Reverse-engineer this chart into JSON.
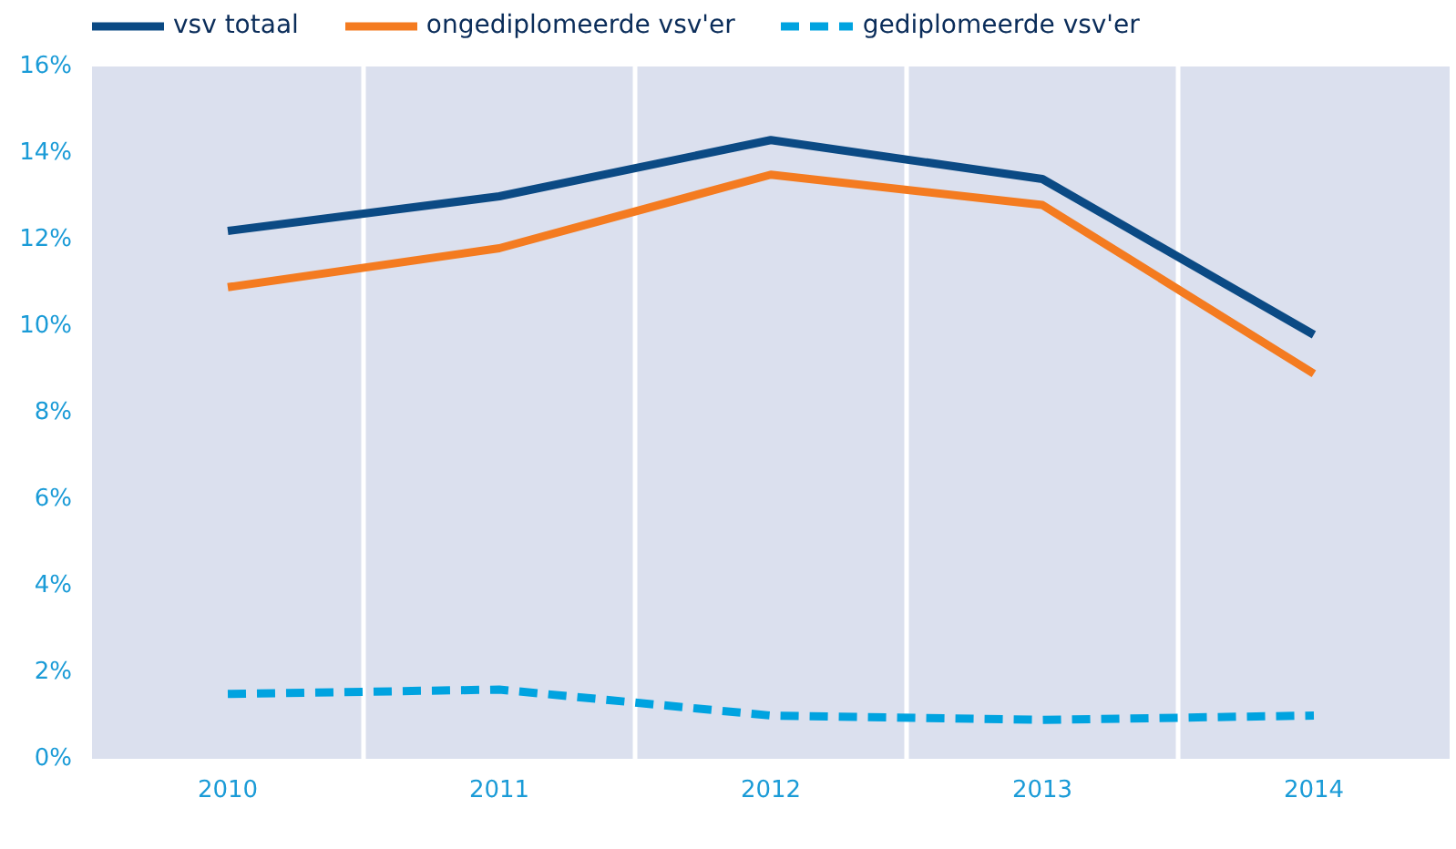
{
  "chart_data": {
    "type": "line",
    "categories": [
      "2010",
      "2011",
      "2012",
      "2013",
      "2014"
    ],
    "series": [
      {
        "name": "vsv totaal",
        "color": "#0b4a84",
        "values": [
          12.2,
          13.0,
          14.3,
          13.4,
          9.8
        ]
      },
      {
        "name": "ongediplomeerde vsv'er",
        "color": "#f47b20",
        "values": [
          10.9,
          11.8,
          13.5,
          12.8,
          8.9
        ]
      },
      {
        "name": "gediplomeerde vsv'er",
        "color": "#00a3e0",
        "values": [
          1.5,
          1.6,
          1.0,
          0.9,
          1.0
        ],
        "line_style": "dashed"
      }
    ],
    "ylim": [
      0,
      16
    ],
    "yticks": [
      {
        "value": 0,
        "label": "0%"
      },
      {
        "value": 2,
        "label": "2%"
      },
      {
        "value": 4,
        "label": "4%"
      },
      {
        "value": 6,
        "label": "6%"
      },
      {
        "value": 8,
        "label": "8%"
      },
      {
        "value": 10,
        "label": "10%"
      },
      {
        "value": 12,
        "label": "12%"
      },
      {
        "value": 14,
        "label": "14%"
      },
      {
        "value": 16,
        "label": "16%"
      }
    ],
    "grid": "x",
    "legend": "top left",
    "line_style": "solid",
    "marker": "none"
  }
}
